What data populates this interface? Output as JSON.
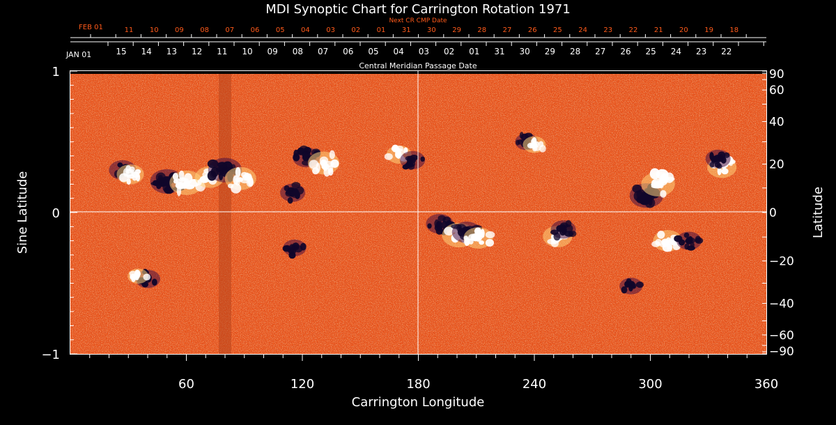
{
  "chart_data": {
    "type": "heatmap",
    "title": "MDI Synoptic Chart for Carrington Rotation 1971",
    "xlabel": "Carrington Longitude",
    "ylabel_left": "Sine Latitude",
    "ylabel_right": "Latitude",
    "xlim": [
      0,
      360
    ],
    "ylim": [
      -1,
      1
    ],
    "x_ticks": [
      60,
      120,
      180,
      240,
      300,
      360
    ],
    "y_ticks_left": [
      "−1",
      "0",
      "1"
    ],
    "y_ticks_right": [
      90,
      60,
      40,
      20,
      0,
      -20,
      -40,
      -60,
      -90
    ],
    "grid": "center crosshair at 180° longitude and 0 latitude",
    "next_cr_axis": {
      "title": "Next CR CMP Date",
      "color": "#ff5a1a",
      "month_label": "FEB 01",
      "labels": [
        "11",
        "10",
        "09",
        "08",
        "07",
        "06",
        "05",
        "04",
        "03",
        "02",
        "01",
        "31",
        "30",
        "29",
        "28",
        "27",
        "26",
        "25",
        "24",
        "23",
        "22",
        "21",
        "20",
        "19",
        "18"
      ]
    },
    "cmp_axis": {
      "title": "Central Meridian Passage Date",
      "color": "#ffffff",
      "month_label": "JAN 01",
      "labels": [
        "15",
        "14",
        "13",
        "12",
        "11",
        "10",
        "09",
        "08",
        "07",
        "06",
        "05",
        "04",
        "03",
        "02",
        "01",
        "31",
        "30",
        "29",
        "28",
        "27",
        "26",
        "25",
        "24",
        "23",
        "22"
      ]
    },
    "colors": {
      "background_field": "#e8521a",
      "positive_polarity": "#ffffff",
      "negative_polarity": "#10062a",
      "axes": "#ffffff"
    },
    "active_regions": [
      {
        "lon": 27,
        "lat": 0.3,
        "polarity": "negative",
        "strength": 0.7
      },
      {
        "lon": 31,
        "lat": 0.27,
        "polarity": "positive",
        "strength": 0.7
      },
      {
        "lon": 50,
        "lat": 0.22,
        "polarity": "negative",
        "strength": 1.0
      },
      {
        "lon": 60,
        "lat": 0.21,
        "polarity": "positive",
        "strength": 1.0
      },
      {
        "lon": 72,
        "lat": 0.25,
        "polarity": "positive",
        "strength": 0.8
      },
      {
        "lon": 80,
        "lat": 0.3,
        "polarity": "negative",
        "strength": 1.0
      },
      {
        "lon": 88,
        "lat": 0.24,
        "polarity": "positive",
        "strength": 0.9
      },
      {
        "lon": 115,
        "lat": 0.14,
        "polarity": "negative",
        "strength": 0.6
      },
      {
        "lon": 122,
        "lat": 0.39,
        "polarity": "negative",
        "strength": 0.7
      },
      {
        "lon": 131,
        "lat": 0.35,
        "polarity": "positive",
        "strength": 0.9
      },
      {
        "lon": 170,
        "lat": 0.41,
        "polarity": "positive",
        "strength": 0.6
      },
      {
        "lon": 177,
        "lat": 0.37,
        "polarity": "negative",
        "strength": 0.6
      },
      {
        "lon": 236,
        "lat": 0.5,
        "polarity": "negative",
        "strength": 0.5
      },
      {
        "lon": 240,
        "lat": 0.48,
        "polarity": "positive",
        "strength": 0.5
      },
      {
        "lon": 298,
        "lat": 0.12,
        "polarity": "negative",
        "strength": 1.0
      },
      {
        "lon": 304,
        "lat": 0.2,
        "polarity": "positive",
        "strength": 1.0
      },
      {
        "lon": 337,
        "lat": 0.32,
        "polarity": "positive",
        "strength": 0.8
      },
      {
        "lon": 335,
        "lat": 0.38,
        "polarity": "negative",
        "strength": 0.6
      },
      {
        "lon": 191,
        "lat": -0.08,
        "polarity": "negative",
        "strength": 0.7
      },
      {
        "lon": 201,
        "lat": -0.16,
        "polarity": "positive",
        "strength": 1.0
      },
      {
        "lon": 205,
        "lat": -0.14,
        "polarity": "negative",
        "strength": 0.8
      },
      {
        "lon": 211,
        "lat": -0.18,
        "polarity": "positive",
        "strength": 0.8
      },
      {
        "lon": 252,
        "lat": -0.17,
        "polarity": "positive",
        "strength": 0.8
      },
      {
        "lon": 255,
        "lat": -0.12,
        "polarity": "negative",
        "strength": 0.6
      },
      {
        "lon": 309,
        "lat": -0.2,
        "polarity": "positive",
        "strength": 0.8
      },
      {
        "lon": 320,
        "lat": -0.2,
        "polarity": "negative",
        "strength": 0.6
      },
      {
        "lon": 116,
        "lat": -0.25,
        "polarity": "negative",
        "strength": 0.5
      },
      {
        "lon": 40,
        "lat": -0.47,
        "polarity": "negative",
        "strength": 0.6
      },
      {
        "lon": 35,
        "lat": -0.45,
        "polarity": "positive",
        "strength": 0.4
      },
      {
        "lon": 290,
        "lat": -0.52,
        "polarity": "negative",
        "strength": 0.5
      }
    ]
  }
}
